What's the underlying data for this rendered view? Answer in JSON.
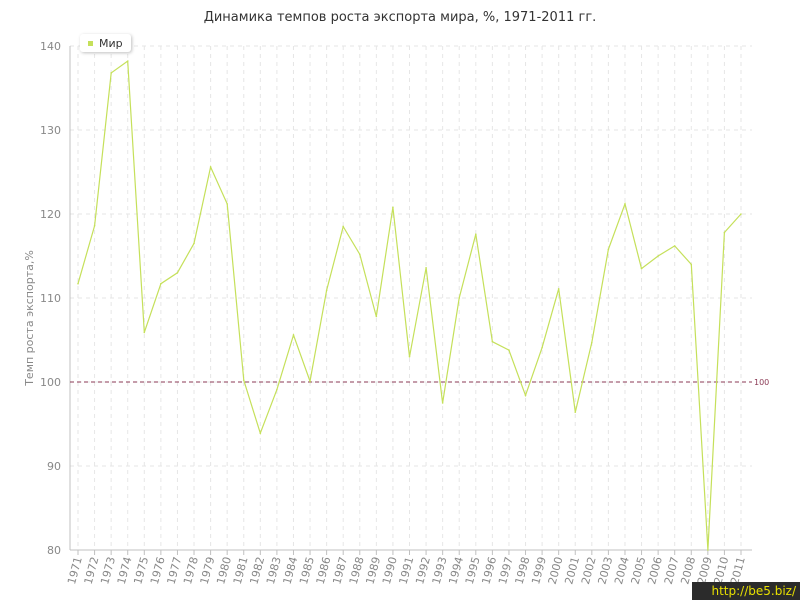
{
  "page": {
    "watermark": "http://be5.biz/"
  },
  "chart_data": {
    "type": "line",
    "title": "Динамика темпов роста экспорта мира, %, 1971-2011 гг.",
    "xlabel": "",
    "ylabel": "Темп роста экспорта,%",
    "ylim": [
      80,
      140
    ],
    "yticks": [
      80,
      90,
      100,
      110,
      120,
      130,
      140
    ],
    "grid": true,
    "legend_position": "top-left",
    "categories": [
      "1971",
      "1972",
      "1973",
      "1974",
      "1975",
      "1976",
      "1977",
      "1978",
      "1979",
      "1980",
      "1981",
      "1982",
      "1983",
      "1984",
      "1985",
      "1986",
      "1987",
      "1988",
      "1989",
      "1990",
      "1991",
      "1992",
      "1993",
      "1994",
      "1995",
      "1996",
      "1997",
      "1998",
      "1999",
      "2000",
      "2001",
      "2002",
      "2003",
      "2004",
      "2005",
      "2006",
      "2007",
      "2008",
      "2009",
      "2010",
      "2011"
    ],
    "series": [
      {
        "name": "Мир",
        "color": "#c5e05a",
        "values": [
          111.7,
          118.6,
          136.8,
          138.2,
          105.9,
          111.7,
          113.0,
          116.5,
          125.6,
          121.2,
          100.2,
          93.9,
          99.1,
          105.6,
          100.1,
          110.9,
          118.5,
          115.2,
          107.8,
          120.8,
          103.0,
          113.6,
          97.5,
          110.0,
          117.6,
          104.8,
          103.8,
          98.4,
          104.1,
          111.1,
          96.4,
          104.7,
          115.8,
          121.2,
          113.5,
          115.0,
          116.2,
          114.0,
          80.0,
          117.8,
          120.0
        ]
      }
    ],
    "reference_line": {
      "value": 100,
      "label": "100",
      "color": "#8b3a55"
    },
    "colors": {
      "grid": "#e6e6e6",
      "axis": "#c0c0c0",
      "tick_label": "#888888"
    }
  }
}
